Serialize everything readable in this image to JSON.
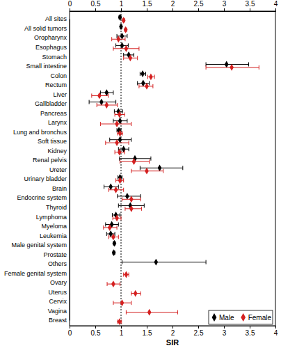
{
  "chart_data": {
    "type": "forest",
    "orientation": "horizontal",
    "x_label": "SIR",
    "categories": [
      "All sites",
      "All solid tumors",
      "Oropharynx",
      "Esophagus",
      "Stomach",
      "Small intestine",
      "Colon",
      "Rectum",
      "Liver",
      "Gallbladder",
      "Pancreas",
      "Larynx",
      "Lung and bronchus",
      "Soft tissue",
      "Kidney",
      "Renal pelvis",
      "Ureter",
      "Urinary bladder",
      "Brain",
      "Endocrine system",
      "Thyroid",
      "Lymphoma",
      "Myeloma",
      "Leukemia",
      "Male genital system",
      "Prostate",
      "Others",
      "Female genital system",
      "Ovary",
      "Uterus",
      "Cervix",
      "Vagina",
      "Breast"
    ],
    "series": [
      {
        "name": "Male",
        "color": "#000000",
        "marker": "diamond",
        "values": [
          0.98,
          1.0,
          1.02,
          1.02,
          1.15,
          3.05,
          1.42,
          1.43,
          0.72,
          0.62,
          0.95,
          0.98,
          0.96,
          0.98,
          1.05,
          1.27,
          1.75,
          0.98,
          0.8,
          1.12,
          1.18,
          0.9,
          0.82,
          0.8,
          0.87,
          0.86,
          1.68,
          null,
          null,
          null,
          null,
          null,
          null
        ],
        "ci_lower": [
          0.96,
          0.98,
          0.92,
          0.9,
          1.05,
          2.65,
          1.37,
          1.32,
          0.6,
          0.38,
          0.87,
          0.85,
          0.92,
          0.78,
          0.95,
          0.97,
          1.37,
          0.94,
          0.67,
          0.93,
          0.95,
          0.83,
          0.7,
          0.72,
          0.85,
          0.84,
          1.02,
          null,
          null,
          null,
          null,
          null,
          null
        ],
        "ci_upper": [
          1.0,
          1.02,
          1.12,
          1.14,
          1.25,
          3.48,
          1.48,
          1.55,
          0.85,
          0.9,
          1.03,
          1.12,
          1.0,
          1.2,
          1.15,
          1.58,
          2.2,
          1.02,
          0.95,
          1.38,
          1.45,
          0.98,
          0.95,
          0.88,
          0.89,
          0.88,
          2.65,
          null,
          null,
          null,
          null,
          null,
          null
        ]
      },
      {
        "name": "Female",
        "color": "#d42020",
        "marker": "diamond",
        "values": [
          1.05,
          1.09,
          0.95,
          1.1,
          1.18,
          3.15,
          1.58,
          1.5,
          0.58,
          0.72,
          0.97,
          0.92,
          0.98,
          0.92,
          0.97,
          1.25,
          1.5,
          0.98,
          0.9,
          1.2,
          1.2,
          0.92,
          0.78,
          0.85,
          null,
          null,
          null,
          1.1,
          0.85,
          1.28,
          1.02,
          1.55,
          0.97
        ],
        "ci_lower": [
          1.03,
          1.07,
          0.82,
          0.85,
          1.05,
          2.65,
          1.52,
          1.35,
          0.43,
          0.53,
          0.88,
          0.6,
          0.93,
          0.7,
          0.88,
          0.98,
          1.2,
          0.9,
          0.76,
          1.02,
          1.08,
          0.84,
          0.66,
          0.76,
          null,
          null,
          null,
          1.05,
          0.73,
          1.2,
          0.85,
          1.1,
          0.93
        ],
        "ci_upper": [
          1.07,
          1.11,
          1.08,
          1.35,
          1.32,
          3.68,
          1.65,
          1.62,
          0.75,
          0.93,
          1.07,
          1.2,
          1.03,
          1.15,
          1.07,
          1.55,
          1.82,
          1.05,
          1.05,
          1.38,
          1.4,
          1.0,
          0.92,
          0.95,
          null,
          null,
          null,
          1.15,
          0.98,
          1.38,
          1.2,
          2.1,
          1.01
        ]
      }
    ],
    "reference_line": 1,
    "xlim": [
      0,
      4
    ],
    "xticks": [
      0,
      0.5,
      1,
      1.5,
      2,
      2.5,
      3,
      3.5,
      4
    ],
    "legend": "lower right",
    "grid": false
  }
}
